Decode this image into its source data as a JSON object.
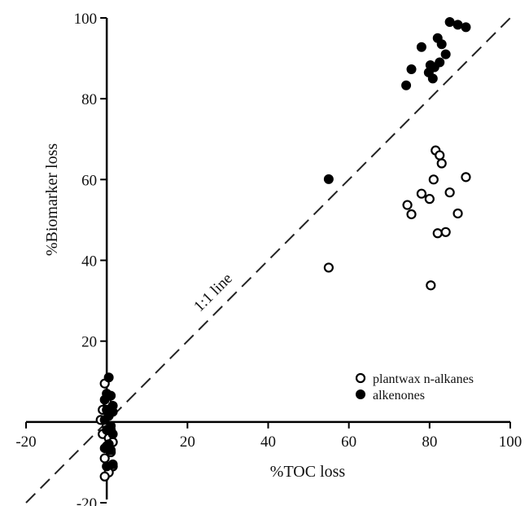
{
  "chart_data": {
    "type": "scatter",
    "title": "",
    "xlabel": "%TOC loss",
    "ylabel": "%Biomarker loss",
    "xlim": [
      -20,
      100
    ],
    "ylim": [
      -20,
      100
    ],
    "xticks": [
      -20,
      20,
      40,
      60,
      80,
      100
    ],
    "yticks": [
      -20,
      20,
      40,
      60,
      80,
      100
    ],
    "xtick_labels": [
      "-20",
      "20",
      "40",
      "60",
      "80",
      "100"
    ],
    "ytick_labels": [
      "-20",
      "20",
      "40",
      "60",
      "80",
      "100"
    ],
    "grid": false,
    "legend_position": "lower-right",
    "reference_line": {
      "label": "1:1 line",
      "slope": 1,
      "intercept": 0,
      "style": "dashed"
    },
    "series": [
      {
        "name": "plantwax n-alkanes",
        "marker": "open-circle",
        "color": "#000000",
        "points": [
          [
            -0.5,
            9.5
          ],
          [
            0,
            5
          ],
          [
            -1,
            3
          ],
          [
            0.5,
            2
          ],
          [
            -1.5,
            0.5
          ],
          [
            0,
            -1
          ],
          [
            1,
            -2
          ],
          [
            -1,
            -3
          ],
          [
            0.5,
            -4
          ],
          [
            1.5,
            -5
          ],
          [
            0,
            -6
          ],
          [
            1,
            -7.5
          ],
          [
            -0.5,
            -9
          ],
          [
            1.5,
            -11
          ],
          [
            0.5,
            -12.5
          ],
          [
            -0.5,
            -13.5
          ],
          [
            55,
            38.2
          ],
          [
            74.5,
            53.7
          ],
          [
            75.5,
            51.4
          ],
          [
            78,
            56.5
          ],
          [
            80,
            55.2
          ],
          [
            81,
            60
          ],
          [
            81.5,
            67.2
          ],
          [
            82.5,
            66
          ],
          [
            83,
            64
          ],
          [
            82,
            46.7
          ],
          [
            84,
            47
          ],
          [
            85,
            56.8
          ],
          [
            87,
            51.6
          ],
          [
            89,
            60.6
          ],
          [
            80.3,
            33.8
          ]
        ]
      },
      {
        "name": "alkenones",
        "marker": "filled-circle",
        "color": "#000000",
        "points": [
          [
            0.5,
            11
          ],
          [
            0,
            7
          ],
          [
            1,
            6.5
          ],
          [
            -0.5,
            5.5
          ],
          [
            1.5,
            4
          ],
          [
            0,
            3
          ],
          [
            1.5,
            2.5
          ],
          [
            0.5,
            1.5
          ],
          [
            -0.5,
            0.5
          ],
          [
            1,
            -1
          ],
          [
            0,
            -2
          ],
          [
            1.5,
            -3
          ],
          [
            0.5,
            -5.5
          ],
          [
            -0.5,
            -6.5
          ],
          [
            1,
            -7
          ],
          [
            0,
            -11
          ],
          [
            1.5,
            -10.5
          ],
          [
            55,
            60.1
          ],
          [
            74.2,
            83.3
          ],
          [
            75.5,
            87.3
          ],
          [
            78,
            92.8
          ],
          [
            79.8,
            86.5
          ],
          [
            80.2,
            88.3
          ],
          [
            80.8,
            85
          ],
          [
            81.2,
            87.8
          ],
          [
            82,
            95
          ],
          [
            82.5,
            89
          ],
          [
            83,
            93.5
          ],
          [
            84,
            91
          ],
          [
            85,
            99
          ],
          [
            87,
            98.3
          ],
          [
            89,
            97.7
          ]
        ]
      }
    ]
  }
}
